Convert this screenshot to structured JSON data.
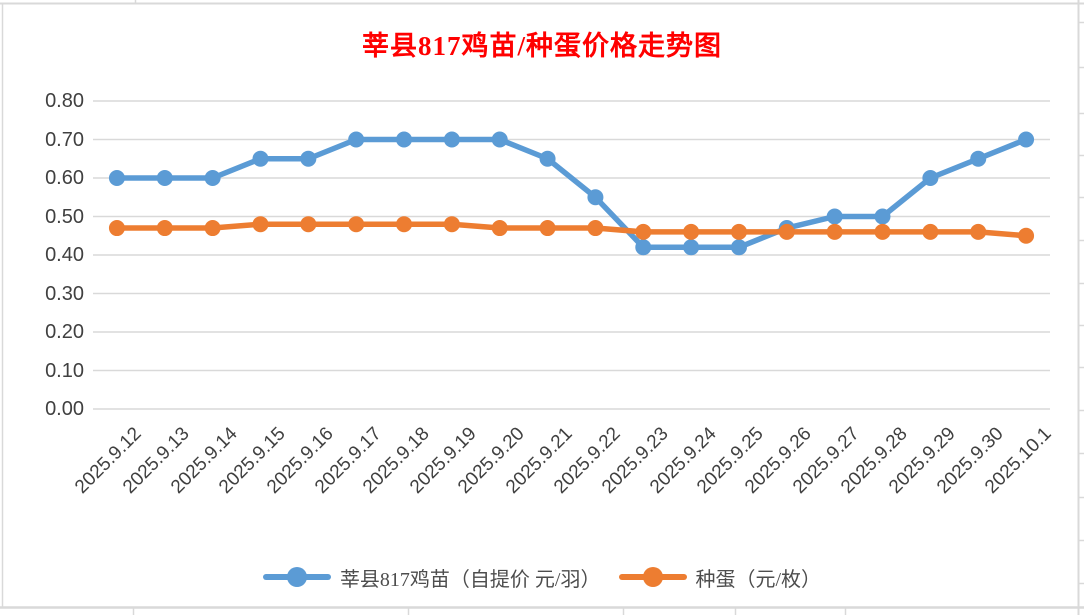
{
  "title": {
    "text": "莘县817鸡苗/种蛋价格走势图",
    "color": "#FF0000"
  },
  "chart_data": {
    "type": "line",
    "title": "莘县817鸡苗/种蛋价格走势图",
    "categories": [
      "2025.9.12",
      "2025.9.13",
      "2025.9.14",
      "2025.9.15",
      "2025.9.16",
      "2025.9.17",
      "2025.9.18",
      "2025.9.19",
      "2025.9.20",
      "2025.9.21",
      "2025.9.22",
      "2025.9.23",
      "2025.9.24",
      "2025.9.25",
      "2025.9.26",
      "2025.9.27",
      "2025.9.28",
      "2025.9.29",
      "2025.9.30",
      "2025.10.1"
    ],
    "series": [
      {
        "name": "莘县817鸡苗（自提价 元/羽）",
        "color": "#5B9BD5",
        "values": [
          0.6,
          0.6,
          0.6,
          0.65,
          0.65,
          0.7,
          0.7,
          0.7,
          0.7,
          0.65,
          0.55,
          0.42,
          0.42,
          0.42,
          0.47,
          0.5,
          0.5,
          0.6,
          0.65,
          0.7
        ]
      },
      {
        "name": "种蛋（元/枚）",
        "color": "#ED7D31",
        "values": [
          0.47,
          0.47,
          0.47,
          0.48,
          0.48,
          0.48,
          0.48,
          0.48,
          0.47,
          0.47,
          0.47,
          0.46,
          0.46,
          0.46,
          0.46,
          0.46,
          0.46,
          0.46,
          0.46,
          0.45
        ]
      }
    ],
    "ylim": [
      0.0,
      0.8
    ],
    "ytick_step": 0.1,
    "ytick_labels": [
      "0.00",
      "0.10",
      "0.20",
      "0.30",
      "0.40",
      "0.50",
      "0.60",
      "0.70",
      "0.80"
    ],
    "grid": true,
    "legend_position": "bottom",
    "gridline_color": "#D9D9D9",
    "sheet_line_color": "#D9D9D9",
    "axis_text_color": "#404040",
    "legend_text_color": "#4D4D4D"
  }
}
